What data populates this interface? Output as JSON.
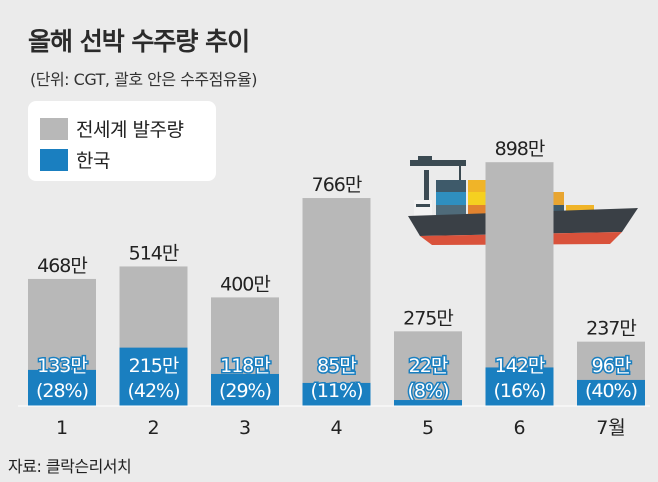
{
  "title": "올해 선박 수주량 추이",
  "subtitle": "(단위: CGT, 괄호 안은 수주점유율)",
  "source": "자료: 클락슨리서치",
  "colors": {
    "world": "#b8b8b8",
    "korea": "#1a7fc0",
    "background": "#ebebeb"
  },
  "chart_data": {
    "type": "bar",
    "categories": [
      "1",
      "2",
      "3",
      "4",
      "5",
      "6",
      "7월"
    ],
    "series": [
      {
        "name": "전세계 발주량",
        "values": [
          468,
          514,
          400,
          766,
          275,
          898,
          237
        ],
        "labels": [
          "468만",
          "514만",
          "400만",
          "766만",
          "275만",
          "898만",
          "237만"
        ]
      },
      {
        "name": "한국",
        "values": [
          133,
          215,
          118,
          85,
          22,
          142,
          96
        ],
        "labels": [
          "133만",
          "215만",
          "118만",
          "85만",
          "22만",
          "142만",
          "96만"
        ],
        "shares": [
          "(28%)",
          "(42%)",
          "(29%)",
          "(11%)",
          "(8%)",
          "(16%)",
          "(40%)"
        ]
      }
    ],
    "legend": "top-left",
    "grid": false
  }
}
